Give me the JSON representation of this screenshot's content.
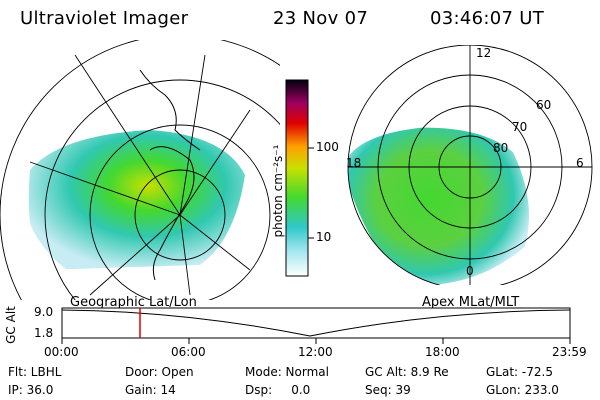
{
  "header": {
    "title": "Ultraviolet Imager",
    "date": "23 Nov 07",
    "time": "03:46:07 UT"
  },
  "left_panel": {
    "caption": "Geographic Lat/Lon"
  },
  "right_panel": {
    "caption": "Apex MLat/MLT",
    "mlt_labels": {
      "top": "12",
      "left": "18",
      "right": "6",
      "bottom": "0"
    },
    "lat_labels": [
      "60",
      "70",
      "80"
    ]
  },
  "colorbar": {
    "label": "photon cm⁻²s⁻¹",
    "ticks": [
      "100",
      "10"
    ]
  },
  "altitude_strip": {
    "ylabel": "GC Alt",
    "yticks": [
      "9.0",
      "1.8"
    ],
    "xticks": [
      "00:00",
      "06:00",
      "12:00",
      "18:00",
      "23:59"
    ],
    "marker_time": "03:46"
  },
  "info": {
    "flt": "Flt: LBHL",
    "ip": "IP: 36.0",
    "door": "Door: Open",
    "gain": "Gain: 14",
    "mode": "Mode: Normal",
    "dsp": "Dsp:     0.0",
    "gcalt": "GC Alt: 8.9 Re",
    "seq": "Seq: 39",
    "glat": "GLat: -72.5",
    "glon": "GLon: 233.0"
  },
  "colors": {
    "grid": "#000000",
    "marker": "#e00000"
  }
}
